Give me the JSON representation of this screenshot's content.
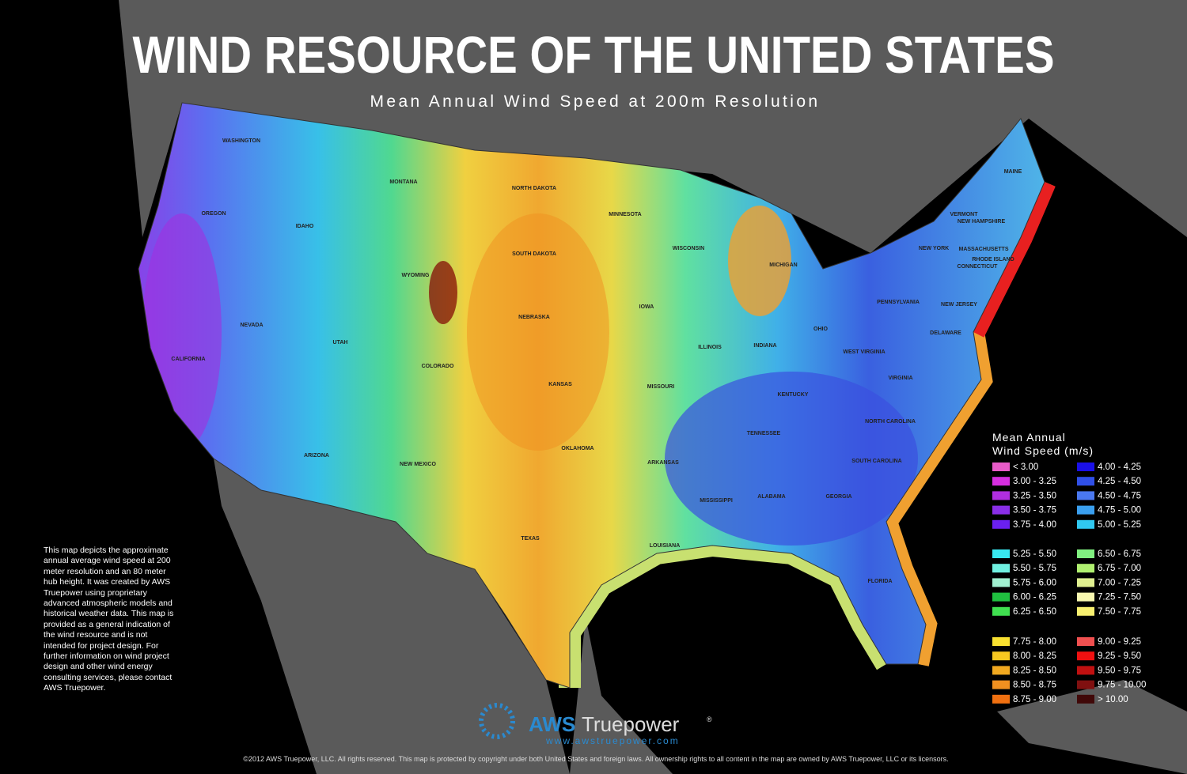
{
  "header": {
    "title": "WIND RESOURCE OF THE UNITED STATES",
    "subtitle": "Mean Annual Wind Speed at 200m Resolution"
  },
  "states": [
    "WASHINGTON",
    "OREGON",
    "IDAHO",
    "MONTANA",
    "NORTH DAKOTA",
    "MINNESOTA",
    "SOUTH DAKOTA",
    "WYOMING",
    "NEVADA",
    "CALIFORNIA",
    "UTAH",
    "COLORADO",
    "NEBRASKA",
    "IOWA",
    "KANSAS",
    "MISSOURI",
    "ARIZONA",
    "NEW MEXICO",
    "OKLAHOMA",
    "ARKANSAS",
    "TEXAS",
    "LOUISIANA",
    "MISSISSIPPI",
    "ALABAMA",
    "GEORGIA",
    "FLORIDA",
    "TENNESSEE",
    "KENTUCKY",
    "ILLINOIS",
    "INDIANA",
    "OHIO",
    "WISCONSIN",
    "MICHIGAN",
    "WEST VIRGINIA",
    "VIRGINIA",
    "NORTH CAROLINA",
    "SOUTH CAROLINA",
    "PENNSYLVANIA",
    "NEW YORK",
    "NEW JERSEY",
    "DELAWARE",
    "MAINE",
    "VERMONT",
    "NEW HAMPSHIRE",
    "MASSACHUSETTS",
    "RHODE ISLAND",
    "CONNECTICUT"
  ],
  "legend": {
    "title": "Mean Annual Wind Speed (m/s)",
    "groups": [
      {
        "left": [
          {
            "label": "< 3.00",
            "color": "#e85bc8"
          },
          {
            "label": "3.00 - 3.25",
            "color": "#d62ee0"
          },
          {
            "label": "3.25 - 3.50",
            "color": "#b02ee0"
          },
          {
            "label": "3.50 - 3.75",
            "color": "#8a2ee8"
          },
          {
            "label": "3.75 - 4.00",
            "color": "#6a20f0"
          }
        ],
        "right": [
          {
            "label": "4.00 - 4.25",
            "color": "#1a10e8"
          },
          {
            "label": "4.25 - 4.50",
            "color": "#3050e8"
          },
          {
            "label": "4.50 - 4.75",
            "color": "#4a78f0"
          },
          {
            "label": "4.75 - 5.00",
            "color": "#3aa0f0"
          },
          {
            "label": "5.00 - 5.25",
            "color": "#30c8f0"
          }
        ]
      },
      {
        "left": [
          {
            "label": "5.25 - 5.50",
            "color": "#38e8f0"
          },
          {
            "label": "5.50 - 5.75",
            "color": "#70f0e0"
          },
          {
            "label": "5.75 - 6.00",
            "color": "#a0f0d0"
          },
          {
            "label": "6.00 - 6.25",
            "color": "#20c040"
          },
          {
            "label": "6.25 - 6.50",
            "color": "#40e050"
          }
        ],
        "right": [
          {
            "label": "6.50 - 6.75",
            "color": "#80f080"
          },
          {
            "label": "6.75 - 7.00",
            "color": "#b0f070"
          },
          {
            "label": "7.00 - 7.25",
            "color": "#e0f090"
          },
          {
            "label": "7.25 - 7.50",
            "color": "#f8f8b0"
          },
          {
            "label": "7.50 - 7.75",
            "color": "#f8f070"
          }
        ]
      },
      {
        "left": [
          {
            "label": "7.75 - 8.00",
            "color": "#f8e030"
          },
          {
            "label": "8.00 - 8.25",
            "color": "#f8c820"
          },
          {
            "label": "8.25 - 8.50",
            "color": "#f0a820"
          },
          {
            "label": "8.50 - 8.75",
            "color": "#f09020"
          },
          {
            "label": "8.75 - 9.00",
            "color": "#f07010"
          }
        ],
        "right": [
          {
            "label": "9.00 - 9.25",
            "color": "#f05050"
          },
          {
            "label": "9.25 - 9.50",
            "color": "#f01010"
          },
          {
            "label": "9.50 - 9.75",
            "color": "#c01010"
          },
          {
            "label": "9.75 - 10.00",
            "color": "#801010"
          },
          {
            "label": "> 10.00",
            "color": "#400808"
          }
        ]
      }
    ]
  },
  "description": "This map depicts the approximate annual average wind speed at 200 meter resolution and an 80 meter hub height. It was created by AWS Truepower using proprietary advanced atmospheric models and historical weather data. This map is provided as a general indication of the wind resource and is not intended for project design. For further information on wind project design and other wind energy consulting services, please contact AWS Truepower.",
  "logo": {
    "brand": "AWS",
    "name": "Truepower",
    "mark": "®",
    "url": "www.awstruepower.com"
  },
  "footer": "©2012 AWS Truepower, LLC. All rights reserved. This map is protected by copyright under both United States and foreign laws. All ownership rights to all content in the map are owned by AWS Truepower, LLC or its licensors."
}
